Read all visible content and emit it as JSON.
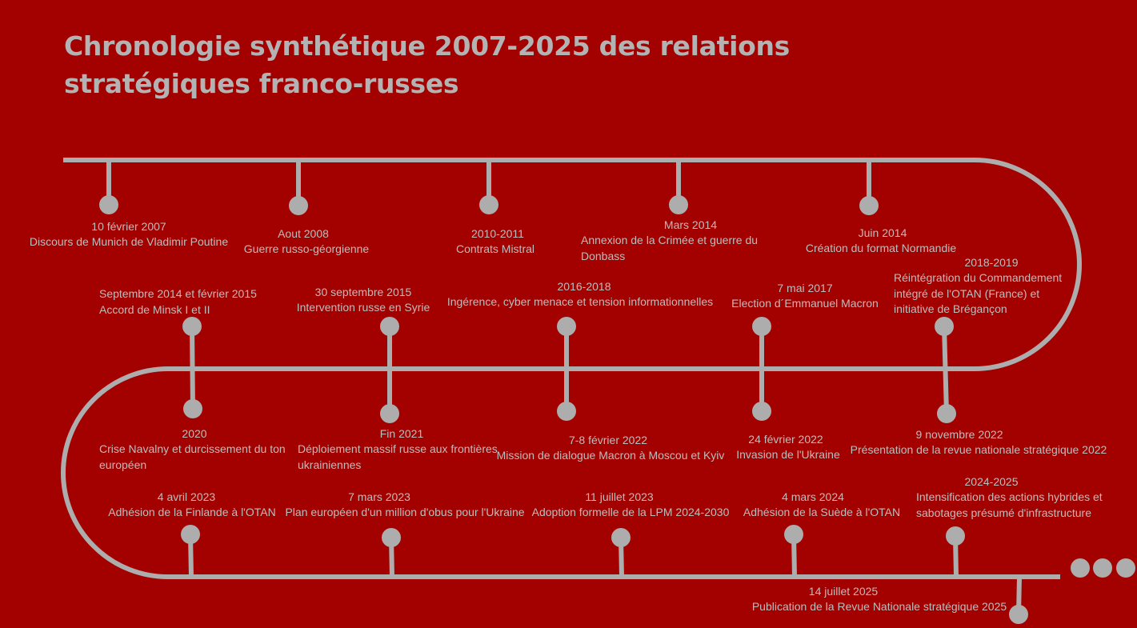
{
  "title": "Chronologie synthétique 2007-2025 des relations\nstratégiques franco-russes",
  "colors": {
    "background": "#a30000",
    "line": "#adadad",
    "text": "#bdbdbd"
  },
  "events": [
    {
      "date": "10 février 2007",
      "text": "Discours de Munich de Vladimir Poutine"
    },
    {
      "date": "Aout 2008",
      "text": "Guerre russo-géorgienne"
    },
    {
      "date": "2010-2011",
      "text": "Contrats Mistral"
    },
    {
      "date": "Mars 2014",
      "text": "Annexion de la Crimée et guerre du\nDonbass"
    },
    {
      "date": "Juin 2014",
      "text": "Création du format Normandie"
    },
    {
      "date": "2018-2019",
      "text": "Réintégration du Commandement\nintégré de l'OTAN (France) et\ninitiative de Brégançon"
    },
    {
      "date": "Septembre 2014 et février 2015",
      "text": "Accord de Minsk I et II"
    },
    {
      "date": "30 septembre 2015",
      "text": "Intervention russe en Syrie"
    },
    {
      "date": "2016-2018",
      "text": "Ingérence, cyber menace  et tension informationnelles"
    },
    {
      "date": "7 mai 2017",
      "text": "Election d´Emmanuel Macron"
    },
    {
      "date": "2020",
      "text": "Crise Navalny et durcissement du ton\neuropéen"
    },
    {
      "date": "Fin 2021",
      "text": "Déploiement massif russe aux frontières\nukrainiennes"
    },
    {
      "date": "7-8 février 2022",
      "text": "Mission de dialogue Macron à Moscou et Kyiv"
    },
    {
      "date": "24 février 2022",
      "text": "Invasion de l'Ukraine"
    },
    {
      "date": "9 novembre 2022",
      "text": "Présentation de la revue nationale stratégique 2022"
    },
    {
      "date": "4 avril 2023",
      "text": "Adhésion de la Finlande à l'OTAN"
    },
    {
      "date": "7 mars 2023",
      "text": "Plan européen d'un million d'obus pour l'Ukraine"
    },
    {
      "date": "11 juillet 2023",
      "text": "Adoption formelle de la LPM 2024-2030"
    },
    {
      "date": "4 mars 2024",
      "text": "Adhésion de la Suède  à l'OTAN"
    },
    {
      "date": "2024-2025",
      "text": "Intensification des actions hybrides et\nsabotages présumé d'infrastructure"
    },
    {
      "date": "14 juillet 2025",
      "text": "Publication de la Revue Nationale stratégique 2025"
    }
  ],
  "continuation_icon": "ellipsis-dots"
}
